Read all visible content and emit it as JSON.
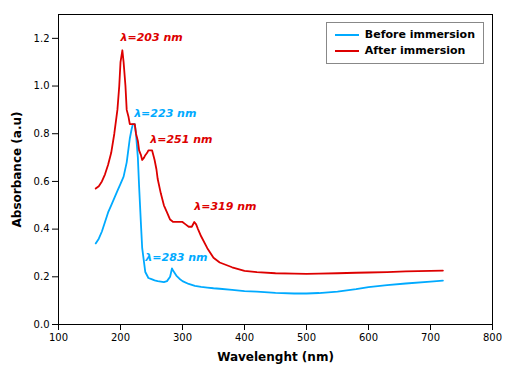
{
  "chart_data": {
    "type": "line",
    "xlabel": "Wavelenght (nm)",
    "ylabel": "Absorbance (a.u)",
    "xlim": [
      100,
      800
    ],
    "ylim": [
      0.0,
      1.3
    ],
    "xticks": [
      100,
      200,
      300,
      400,
      500,
      600,
      700,
      800
    ],
    "yticks": [
      {
        "value": 0.0,
        "label": "0.0"
      },
      0.2,
      0.4,
      0.6,
      0.8,
      {
        "value": 1.0,
        "label": "1.0"
      },
      1.2
    ],
    "legend": "upper right",
    "series": [
      {
        "name": "Before immersion",
        "color": "#00aaff",
        "x": [
          160,
          165,
          170,
          175,
          180,
          185,
          190,
          195,
          200,
          205,
          210,
          213,
          215,
          218,
          220,
          222,
          223,
          225,
          228,
          230,
          233,
          235,
          240,
          245,
          250,
          255,
          260,
          265,
          270,
          275,
          280,
          283,
          285,
          290,
          295,
          300,
          310,
          320,
          330,
          340,
          350,
          360,
          380,
          400,
          420,
          450,
          480,
          500,
          520,
          550,
          580,
          600,
          630,
          660,
          700,
          720
        ],
        "values": [
          0.34,
          0.36,
          0.39,
          0.43,
          0.47,
          0.5,
          0.53,
          0.56,
          0.59,
          0.62,
          0.68,
          0.74,
          0.78,
          0.82,
          0.84,
          0.84,
          0.84,
          0.8,
          0.7,
          0.58,
          0.42,
          0.32,
          0.22,
          0.195,
          0.19,
          0.185,
          0.182,
          0.18,
          0.178,
          0.182,
          0.2,
          0.235,
          0.225,
          0.205,
          0.192,
          0.182,
          0.17,
          0.162,
          0.158,
          0.155,
          0.152,
          0.15,
          0.145,
          0.14,
          0.138,
          0.133,
          0.13,
          0.13,
          0.132,
          0.138,
          0.148,
          0.157,
          0.165,
          0.172,
          0.18,
          0.184
        ]
      },
      {
        "name": "After immersion",
        "color": "#dd0000",
        "x": [
          160,
          165,
          170,
          175,
          180,
          185,
          190,
          195,
          198,
          200,
          203,
          205,
          208,
          210,
          213,
          215,
          218,
          220,
          223,
          225,
          228,
          230,
          233,
          235,
          238,
          240,
          243,
          245,
          248,
          251,
          253,
          255,
          258,
          260,
          265,
          270,
          275,
          280,
          285,
          290,
          295,
          300,
          305,
          310,
          315,
          319,
          322,
          325,
          330,
          340,
          350,
          360,
          380,
          400,
          420,
          450,
          480,
          500,
          520,
          550,
          580,
          600,
          630,
          660,
          700,
          720
        ],
        "values": [
          0.57,
          0.58,
          0.6,
          0.63,
          0.67,
          0.72,
          0.8,
          0.9,
          1.0,
          1.1,
          1.15,
          1.1,
          1.0,
          0.9,
          0.87,
          0.84,
          0.84,
          0.84,
          0.84,
          0.8,
          0.77,
          0.73,
          0.71,
          0.69,
          0.7,
          0.71,
          0.72,
          0.73,
          0.73,
          0.73,
          0.71,
          0.69,
          0.65,
          0.61,
          0.55,
          0.5,
          0.47,
          0.44,
          0.43,
          0.43,
          0.43,
          0.43,
          0.42,
          0.41,
          0.41,
          0.43,
          0.42,
          0.4,
          0.37,
          0.32,
          0.28,
          0.26,
          0.24,
          0.225,
          0.22,
          0.215,
          0.213,
          0.212,
          0.213,
          0.215,
          0.217,
          0.218,
          0.22,
          0.223,
          0.225,
          0.226
        ]
      }
    ],
    "annotations": [
      {
        "label": "λ=203 nm",
        "x": 200,
        "y": 1.19,
        "color": "#dd0000"
      },
      {
        "label": "λ=223 nm",
        "x": 222,
        "y": 0.87,
        "color": "#00aaff"
      },
      {
        "label": "λ=251 nm",
        "x": 248,
        "y": 0.76,
        "color": "#dd0000"
      },
      {
        "label": "λ=319 nm",
        "x": 319,
        "y": 0.48,
        "color": "#dd0000"
      },
      {
        "label": "λ=283 nm",
        "x": 240,
        "y": 0.265,
        "color": "#00aaff"
      }
    ]
  }
}
